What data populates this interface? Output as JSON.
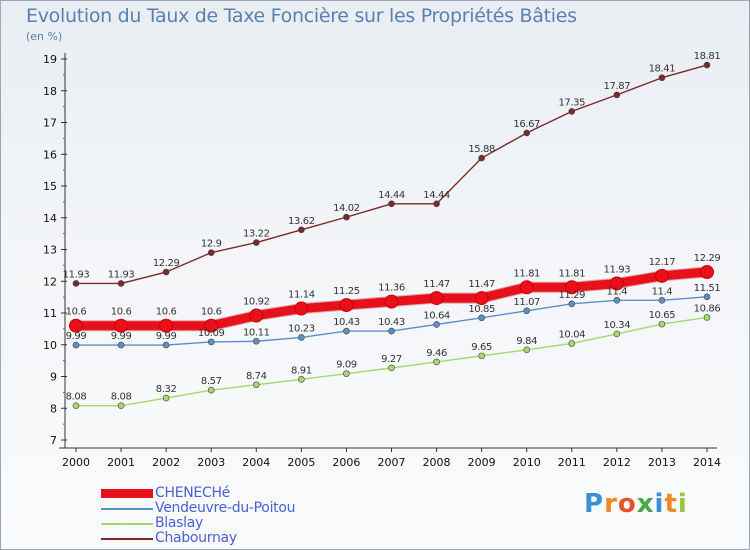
{
  "title": "Evolution du Taux de Taxe Foncière sur les Propriétés Bâties",
  "unit_label": "(en %)",
  "logo": {
    "letters": [
      "P",
      "r",
      "o",
      "x",
      "i",
      "t",
      "i"
    ],
    "colors": [
      "#3b8fd4",
      "#f08a24",
      "#e5532c",
      "#4aa845",
      "#3b8fd4",
      "#f08a24",
      "#9bc53d"
    ]
  },
  "chart_data": {
    "type": "line",
    "title": "Evolution du Taux de Taxe Foncière sur les Propriétés Bâties",
    "ylabel": "(en %)",
    "xlabel": "",
    "x": [
      "2000",
      "2001",
      "2002",
      "2003",
      "2004",
      "2005",
      "2006",
      "2007",
      "2008",
      "2009",
      "2010",
      "2011",
      "2012",
      "2013",
      "2014"
    ],
    "yticks": [
      "7",
      "8",
      "9",
      "10",
      "11",
      "12",
      "13",
      "14",
      "15",
      "16",
      "17",
      "18",
      "19"
    ],
    "ylim": [
      7,
      19
    ],
    "grid": false,
    "legend_position": "bottom-left",
    "series": [
      {
        "name": "CHENECHé",
        "color": "#e8101b",
        "values": [
          10.6,
          10.6,
          10.6,
          10.6,
          10.92,
          11.14,
          11.25,
          11.36,
          11.47,
          11.47,
          11.81,
          11.81,
          11.93,
          12.17,
          12.29
        ],
        "labels": [
          "10.6",
          "10.6",
          "10.6",
          "10.6",
          "10.92",
          "11.14",
          "11.25",
          "11.36",
          "11.47",
          "11.47",
          "11.81",
          "11.81",
          "11.93",
          "12.17",
          "12.29"
        ]
      },
      {
        "name": "Vendeuvre-du-Poitou",
        "color": "#5b8fc9",
        "values": [
          9.99,
          9.99,
          9.99,
          10.09,
          10.11,
          10.23,
          10.43,
          10.43,
          10.64,
          10.85,
          11.07,
          11.29,
          11.4,
          11.4,
          11.51
        ],
        "labels": [
          "9.99",
          "9.99",
          "9.99",
          "10.09",
          "10.11",
          "10.23",
          "10.43",
          "10.43",
          "10.64",
          "10.85",
          "11.07",
          "11.29",
          "11.4",
          "11.4",
          "11.51"
        ]
      },
      {
        "name": "Blaslay",
        "color": "#a6d86c",
        "values": [
          8.08,
          8.08,
          8.32,
          8.57,
          8.74,
          8.91,
          9.09,
          9.27,
          9.46,
          9.65,
          9.84,
          10.04,
          10.34,
          10.65,
          10.86
        ],
        "labels": [
          "8.08",
          "8.08",
          "8.32",
          "8.57",
          "8.74",
          "8.91",
          "9.09",
          "9.27",
          "9.46",
          "9.65",
          "9.84",
          "10.04",
          "10.34",
          "10.65",
          "10.86"
        ]
      },
      {
        "name": "Chabournay",
        "color": "#7a2a2a",
        "values": [
          11.93,
          11.93,
          12.29,
          12.9,
          13.22,
          13.62,
          14.02,
          14.44,
          14.44,
          15.88,
          16.67,
          17.35,
          17.87,
          18.41,
          18.81
        ],
        "labels": [
          "11.93",
          "11.93",
          "12.29",
          "12.9",
          "13.22",
          "13.62",
          "14.02",
          "14.44",
          "14.44",
          "15.88",
          "16.67",
          "17.35",
          "17.87",
          "18.41",
          "18.81"
        ]
      }
    ]
  }
}
